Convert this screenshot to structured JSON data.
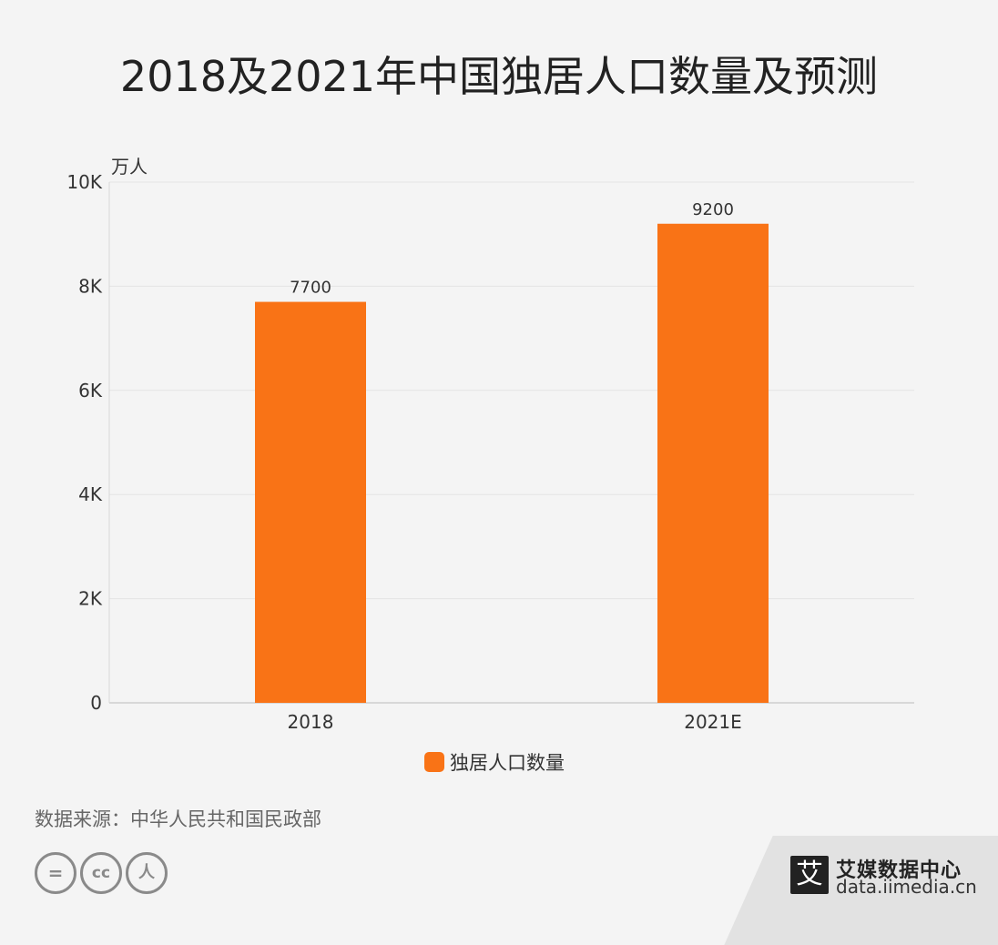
{
  "title": "2018及2021年中国独居人口数量及预测",
  "chart_data": {
    "type": "bar",
    "categories": [
      "2018",
      "2021E"
    ],
    "series": [
      {
        "name": "独居人口数量",
        "values": [
          7700,
          9200
        ]
      }
    ],
    "data_labels": [
      "7700",
      "9200"
    ],
    "unit_label": "万人",
    "ylim": [
      0,
      10000
    ],
    "y_ticks": [
      0,
      2000,
      4000,
      6000,
      8000,
      10000
    ],
    "y_tick_labels": [
      "0",
      "2K",
      "4K",
      "6K",
      "8K",
      "10K"
    ],
    "grid": true,
    "legend_position": "bottom-center",
    "bar_color": "#f97316"
  },
  "source": "数据来源：中华人民共和国民政部",
  "license_icons": [
    "equals-icon",
    "cc-icon",
    "person-icon"
  ],
  "license_glyphs": [
    "=",
    "cc",
    "人"
  ],
  "brand": {
    "mark": "艾",
    "name": "艾媒数据中心",
    "url": "data.iimedia.cn"
  }
}
